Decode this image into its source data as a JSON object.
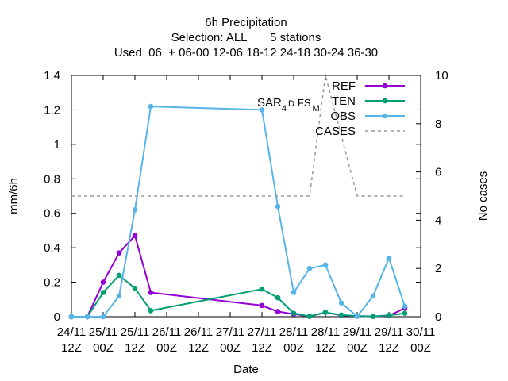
{
  "chart_data": {
    "type": "line",
    "title_lines": [
      "6h Precipitation",
      "Selection: ALL       5 stations",
      "Used  06  + 06-00 12-06 18-12 24-18 30-24 36-30"
    ],
    "xlabel": "Date",
    "ylabel": "mm/6h",
    "y2label": "No cases",
    "ylim": [
      0,
      1.4
    ],
    "y2lim": [
      0,
      10
    ],
    "yticks": [
      "0",
      "0.2",
      "0.4",
      "0.6",
      "0.8",
      "1",
      "1.2",
      "1.4"
    ],
    "y2ticks": [
      "0",
      "2",
      "4",
      "6",
      "8",
      "10"
    ],
    "x_ticks": [
      {
        "line1": "24/11",
        "line2": "12Z"
      },
      {
        "line1": "25/11",
        "line2": "00Z"
      },
      {
        "line1": "25/11",
        "line2": "12Z"
      },
      {
        "line1": "26/11",
        "line2": "00Z"
      },
      {
        "line1": "26/11",
        "line2": "12Z"
      },
      {
        "line1": "27/11",
        "line2": "00Z"
      },
      {
        "line1": "27/11",
        "line2": "12Z"
      },
      {
        "line1": "28/11",
        "line2": "00Z"
      },
      {
        "line1": "28/11",
        "line2": "12Z"
      },
      {
        "line1": "29/11",
        "line2": "00Z"
      },
      {
        "line1": "29/11",
        "line2": "12Z"
      },
      {
        "line1": "30/11",
        "line2": "00Z"
      }
    ],
    "legend_position": "top-right",
    "model_label": {
      "main": "SAR",
      "sub1": "4",
      "mid1": "D",
      "mid2": "FS",
      "sub2": "M"
    },
    "series": [
      {
        "name": "REF",
        "color": "#9400d3",
        "axis": "y1",
        "x": [
          0,
          3,
          6,
          9,
          12,
          15,
          36,
          39,
          42,
          45,
          48,
          51,
          54,
          57,
          60,
          63
        ],
        "values": [
          0,
          0,
          0.2,
          0.37,
          0.47,
          0.14,
          0.065,
          0.03,
          0.015,
          0.002,
          0.025,
          0.008,
          0.003,
          0.002,
          0.005,
          0.05
        ]
      },
      {
        "name": "TEN",
        "color": "#009e73",
        "axis": "y1",
        "x": [
          0,
          3,
          6,
          9,
          12,
          15,
          36,
          39,
          42,
          45,
          48,
          51,
          54,
          57,
          60,
          63
        ],
        "values": [
          0,
          0,
          0.14,
          0.24,
          0.165,
          0.035,
          0.16,
          0.11,
          0.02,
          0.002,
          0.025,
          0.01,
          0.003,
          0.002,
          0.008,
          0.02
        ]
      },
      {
        "name": "OBS",
        "color": "#56b4e9",
        "axis": "y1",
        "x": [
          0,
          3,
          6,
          9,
          12,
          15,
          36,
          39,
          42,
          45,
          48,
          51,
          54,
          57,
          60,
          63
        ],
        "values": [
          0,
          0,
          0,
          0.12,
          0.62,
          1.22,
          1.2,
          0.64,
          0.14,
          0.28,
          0.3,
          0.08,
          0.002,
          0.12,
          0.34,
          0.06
        ]
      },
      {
        "name": "CASES",
        "color": "#999999",
        "axis": "y2",
        "dashed": true,
        "x": [
          0,
          45,
          48,
          54,
          63
        ],
        "values": [
          5,
          5,
          10,
          5,
          5
        ]
      }
    ]
  }
}
